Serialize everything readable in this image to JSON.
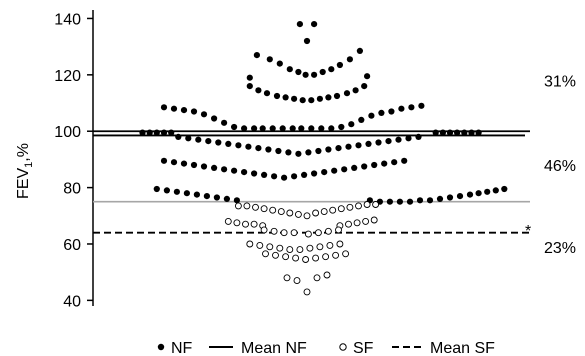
{
  "chart_data": {
    "type": "scatter",
    "title": "",
    "xlabel": "",
    "ylabel": {
      "main": "FEV",
      "sub": "1",
      "suffix": ",%"
    },
    "ylim": [
      38,
      143
    ],
    "yticks": [
      40,
      60,
      80,
      100,
      120,
      140
    ],
    "grid": false,
    "legend_position": "bottom",
    "legend": [
      {
        "symbol": "filled-dot",
        "label": "NF"
      },
      {
        "symbol": "solid-line",
        "label": "Mean NF"
      },
      {
        "symbol": "open-dot",
        "label": "SF"
      },
      {
        "symbol": "dashed-line",
        "label": "Mean SF"
      }
    ],
    "reference_lines": [
      {
        "y": 100,
        "style": "solid",
        "color": "#000000",
        "name": "upper threshold"
      },
      {
        "y": 98.5,
        "style": "solid",
        "color": "#000000",
        "name": "Mean NF"
      },
      {
        "y": 75,
        "style": "solid",
        "color": "#a6a6a6",
        "name": "lower threshold"
      },
      {
        "y": 64,
        "style": "dashed",
        "color": "#000000",
        "name": "Mean SF"
      }
    ],
    "annotations": [
      {
        "text": "31%",
        "y": 118
      },
      {
        "text": "46%",
        "y": 88
      },
      {
        "text": "23%",
        "y": 59
      },
      {
        "text": "*",
        "y": 65
      }
    ],
    "series": [
      {
        "name": "NF",
        "marker": "filled",
        "rows": [
          {
            "y": [
              138,
              138
            ],
            "x": [
              -0.5,
              0.5
            ]
          },
          {
            "y": [
              132
            ],
            "x": [
              0
            ]
          },
          {
            "y": [
              127,
              125.5,
              124,
              122,
              121,
              120,
              120,
              121,
              122,
              123.5,
              125.5,
              128.5
            ],
            "x": [
              -3.5,
              -2.6,
              -1.9,
              -1.2,
              -0.6,
              -0.1,
              0.5,
              1.1,
              1.7,
              2.3,
              3,
              3.7
            ]
          },
          {
            "y": [
              119,
              119.5
            ],
            "x": [
              -4,
              4.2
            ]
          },
          {
            "y": [
              116,
              114.5,
              113.5,
              112.5,
              112,
              111.5,
              111,
              111,
              111.5,
              112,
              112.5,
              113.5,
              114.5,
              116
            ],
            "x": [
              -4,
              -3.4,
              -2.8,
              -2.1,
              -1.5,
              -0.9,
              -0.3,
              0.3,
              0.9,
              1.5,
              2.1,
              2.8,
              3.4,
              4
            ]
          },
          {
            "y": [
              108.5,
              108,
              107.5,
              107,
              106,
              104.5,
              103,
              101.5,
              101,
              101,
              101,
              101,
              101,
              101,
              101,
              101,
              101,
              101,
              101.5,
              102.5,
              104,
              105.5,
              106.5,
              107,
              108,
              108.5,
              109
            ],
            "x": [
              -10,
              -9.3,
              -8.6,
              -7.9,
              -7.2,
              -6.5,
              -5.8,
              -5.1,
              -4.4,
              -3.7,
              -3.1,
              -2.4,
              -1.7,
              -1,
              -0.4,
              0.3,
              1,
              1.7,
              2.4,
              3.1,
              3.8,
              4.5,
              5.2,
              5.9,
              6.6,
              7.3,
              8
            ]
          },
          {
            "y": [
              99.5,
              99.5,
              99.5,
              99.5,
              99.5,
              99.5,
              99.5,
              99.5,
              99.5,
              99.5,
              99.5,
              99.5
            ],
            "x": [
              -11.5,
              -11,
              -10.5,
              -10,
              -9.5,
              9,
              9.5,
              10,
              10.5,
              11,
              11.5,
              12
            ]
          },
          {
            "y": [
              98,
              97.5,
              97,
              96.5,
              96,
              95.5,
              95,
              94.5,
              94,
              93.5,
              93,
              92.5,
              92,
              92.5,
              93,
              93.5,
              94,
              94.5,
              95,
              95.5,
              96,
              96.5,
              97,
              97.5,
              98
            ],
            "x": [
              -9,
              -8.3,
              -7.6,
              -6.9,
              -6.2,
              -5.5,
              -4.8,
              -4.1,
              -3.4,
              -2.7,
              -2,
              -1.3,
              -0.6,
              0.1,
              0.8,
              1.5,
              2.2,
              2.9,
              3.6,
              4.3,
              5,
              5.7,
              6.4,
              7.1,
              7.8
            ]
          },
          {
            "y": [
              89.5,
              89,
              88.5,
              88,
              87.5,
              87,
              86.5,
              86,
              85.5,
              85,
              84.5,
              84,
              83.5,
              84,
              84.5,
              85,
              85.5,
              86,
              86.5,
              87,
              87.5,
              88,
              88.5,
              89,
              89.5
            ],
            "x": [
              -10,
              -9.3,
              -8.6,
              -7.9,
              -7.2,
              -6.5,
              -5.8,
              -5.1,
              -4.4,
              -3.7,
              -3,
              -2.3,
              -1.6,
              -0.9,
              -0.2,
              0.5,
              1.2,
              1.9,
              2.6,
              3.3,
              4,
              4.7,
              5.4,
              6.1,
              6.8
            ]
          },
          {
            "y": [
              79.5,
              79,
              78.5,
              78,
              77.5,
              77,
              76.5,
              76,
              75.5,
              75.5,
              75,
              75,
              75,
              75,
              75.5,
              75.5,
              76,
              76.5,
              77,
              77.5,
              78,
              78.5,
              79,
              79.5
            ],
            "x": [
              -10.5,
              -9.8,
              -9.1,
              -8.4,
              -7.7,
              -7,
              -6.3,
              -5.6,
              -4.9,
              4.4,
              5.1,
              5.8,
              6.5,
              7.2,
              7.9,
              8.6,
              9.3,
              10,
              10.7,
              11.4,
              12,
              12.6,
              13.2,
              13.8
            ]
          }
        ]
      },
      {
        "name": "SF",
        "marker": "open",
        "rows": [
          {
            "y": [
              73.5,
              73.5,
              73,
              72.5,
              72,
              71.5,
              71,
              70.5,
              70,
              71,
              71.5,
              72,
              72.5,
              73,
              73.5,
              74,
              74
            ],
            "x": [
              -4.8,
              -4.2,
              -3.6,
              -3,
              -2.4,
              -1.8,
              -1.2,
              -0.6,
              0,
              0.6,
              1.2,
              1.8,
              2.4,
              3,
              3.6,
              4.2,
              4.8
            ]
          },
          {
            "y": [
              68,
              67.5,
              67,
              67,
              66.5,
              66.5,
              67,
              67.5,
              68,
              68.5
            ],
            "x": [
              -5.5,
              -4.9,
              -4.3,
              -3.7,
              -3.1,
              2.3,
              2.9,
              3.5,
              4.1,
              4.7
            ]
          },
          {
            "y": [
              65,
              64.5,
              64,
              64,
              63.5,
              64,
              64.5,
              65
            ],
            "x": [
              -3,
              -2.3,
              -1.6,
              -0.9,
              0.1,
              0.8,
              1.5,
              2.2
            ]
          },
          {
            "y": [
              60,
              59.5,
              59,
              58.5,
              58,
              58,
              58.5,
              59,
              59.5,
              60
            ],
            "x": [
              -4,
              -3.3,
              -2.6,
              -1.9,
              -1.2,
              -0.5,
              0.2,
              0.9,
              1.6,
              2.3
            ]
          },
          {
            "y": [
              56.5,
              56,
              55.5,
              55,
              54.5,
              55,
              55.5,
              56,
              56.5
            ],
            "x": [
              -2.9,
              -2.2,
              -1.5,
              -0.8,
              -0.1,
              0.6,
              1.3,
              2,
              2.7
            ]
          },
          {
            "y": [
              48,
              47,
              48,
              49
            ],
            "x": [
              -1.4,
              -0.7,
              0.7,
              1.4
            ]
          },
          {
            "y": [
              43
            ],
            "x": [
              0
            ]
          }
        ]
      }
    ]
  }
}
